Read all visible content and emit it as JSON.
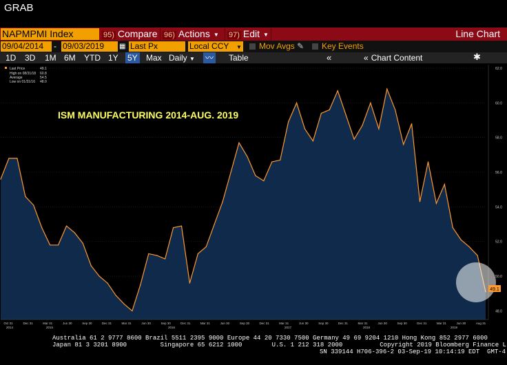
{
  "window": {
    "title": "GRAB"
  },
  "toolbar": {
    "ticker": "NAPMPMI Index",
    "compare": {
      "num": "95)",
      "label": "Compare"
    },
    "actions": {
      "num": "96)",
      "label": "Actions"
    },
    "edit": {
      "num": "97)",
      "label": "Edit"
    },
    "chart_type": "Line Chart"
  },
  "controls": {
    "start_date": "09/04/2014",
    "end_date": "09/03/2019",
    "field": "Last Px",
    "currency": "Local CCY",
    "mov_avgs": "Mov Avgs",
    "key_events": "Key Events"
  },
  "periods": {
    "items": [
      "1D",
      "3D",
      "1M",
      "6M",
      "YTD",
      "1Y",
      "5Y",
      "Max"
    ],
    "selected": "5Y",
    "frequency": "Daily",
    "table": "Table",
    "chart_content": "Chart Content"
  },
  "legend": {
    "last_price": {
      "label": "Last Price",
      "value": "49.1"
    },
    "high": {
      "label": "High on 08/31/18",
      "value": "60.8"
    },
    "average": {
      "label": "Average",
      "value": "54.5"
    },
    "low": {
      "label": "Low on 01/31/16",
      "value": "48.0"
    }
  },
  "annotation": "ISM MANUFACTURING 2014-AUG. 2019",
  "last_value_tag": "49.1",
  "colors": {
    "line": "#ff9a2e",
    "fill": "#0f2a4a",
    "accent": "#f2a000",
    "toolbar": "#8b0a16"
  },
  "chart_data": {
    "type": "area",
    "title": "ISM MANUFACTURING 2014-AUG. 2019",
    "xlabel": "",
    "ylabel": "",
    "ylim": [
      47.5,
      62.2
    ],
    "yticks": [
      "62.0",
      "60.0",
      "58.0",
      "56.0",
      "54.0",
      "52.0",
      "50.0",
      "48.0"
    ],
    "month_ticks": [
      "Oct 31",
      "Dec 31",
      "Mar 31",
      "Jun 30",
      "Sep 30",
      "Dec 31",
      "Mar 31",
      "Jun 30",
      "Sep 30",
      "Dec 31",
      "Mar 31",
      "Jun 30",
      "Sep 30",
      "Dec 31",
      "Mar 31",
      "Jun 30",
      "Sep 30",
      "Dec 31",
      "Mar 31",
      "Jun 30",
      "Sep 30",
      "Dec 31",
      "Mar 31",
      "Jun 30",
      "Aug 31"
    ],
    "year_ticks": [
      "2014",
      "2015",
      "2016",
      "2017",
      "2018",
      "2019"
    ],
    "x": [
      "2014-09",
      "2014-10",
      "2014-11",
      "2014-12",
      "2015-01",
      "2015-02",
      "2015-03",
      "2015-04",
      "2015-05",
      "2015-06",
      "2015-07",
      "2015-08",
      "2015-09",
      "2015-10",
      "2015-11",
      "2015-12",
      "2016-01",
      "2016-02",
      "2016-03",
      "2016-04",
      "2016-05",
      "2016-06",
      "2016-07",
      "2016-08",
      "2016-09",
      "2016-10",
      "2016-11",
      "2016-12",
      "2017-01",
      "2017-02",
      "2017-03",
      "2017-04",
      "2017-05",
      "2017-06",
      "2017-07",
      "2017-08",
      "2017-09",
      "2017-10",
      "2017-11",
      "2017-12",
      "2018-01",
      "2018-02",
      "2018-03",
      "2018-04",
      "2018-05",
      "2018-06",
      "2018-07",
      "2018-08",
      "2018-09",
      "2018-10",
      "2018-11",
      "2018-12",
      "2019-01",
      "2019-02",
      "2019-03",
      "2019-04",
      "2019-05",
      "2019-06",
      "2019-07",
      "2019-08"
    ],
    "values": [
      55.6,
      56.8,
      56.8,
      54.6,
      54.1,
      52.8,
      51.8,
      51.8,
      52.9,
      52.5,
      51.9,
      50.6,
      50.0,
      49.6,
      48.9,
      48.4,
      48.0,
      49.5,
      51.3,
      51.2,
      51.0,
      52.8,
      52.9,
      49.6,
      51.3,
      51.7,
      53.0,
      54.3,
      56.0,
      57.7,
      56.9,
      55.8,
      55.5,
      56.6,
      56.7,
      58.9,
      60.0,
      58.5,
      57.8,
      59.4,
      59.6,
      60.7,
      59.3,
      57.9,
      58.7,
      60.0,
      58.5,
      60.8,
      59.6,
      57.6,
      58.8,
      54.3,
      56.6,
      54.2,
      55.3,
      52.8,
      52.1,
      51.7,
      51.2,
      49.1
    ]
  },
  "footer": {
    "line1": "Australia 61 2 9777 8600 Brazil 5511 2395 9000 Europe 44 20 7330 7500 Germany 49 69 9204 1210 Hong Kong 852 2977 6000",
    "line2": "Japan 81 3 3201 8900         Singapore 65 6212 1000        U.S. 1 212 318 2000          Copyright 2019 Bloomberg Finance L.P.",
    "line3": "SN 339144 H706-396-2 03-Sep-19 10:14:19 EDT  GMT-4:00"
  }
}
